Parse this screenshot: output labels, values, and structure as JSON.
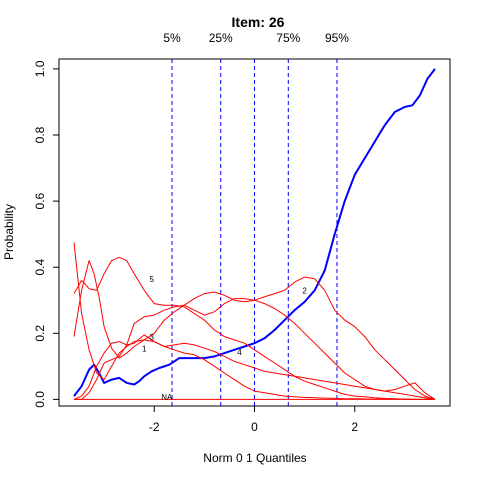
{
  "chart_data": {
    "type": "line",
    "title": "Item:  26",
    "xlabel": "Norm 0 1 Quantiles",
    "ylabel": "Probability",
    "xlim": [
      -3.9,
      3.9
    ],
    "ylim": [
      -0.02,
      1.03
    ],
    "x_ticks": [
      -2,
      0,
      2
    ],
    "y_ticks": [
      0.0,
      0.2,
      0.4,
      0.6,
      0.8,
      1.0
    ],
    "x_tick_labels": [
      "-2",
      "0",
      "2"
    ],
    "y_tick_labels": [
      "0.0",
      "0.2",
      "0.4",
      "0.6",
      "0.8",
      "1.0"
    ],
    "grid": false,
    "quantile_lines": [
      {
        "label": "5%",
        "x": -1.645
      },
      {
        "label": "25%",
        "x": -0.674
      },
      {
        "label": "",
        "x": 0
      },
      {
        "label": "75%",
        "x": 0.674
      },
      {
        "label": "95%",
        "x": 1.645
      }
    ],
    "series": [
      {
        "name": "",
        "color": "#0000ff",
        "width": 2,
        "x": [
          -3.6,
          -3.45,
          -3.3,
          -3.2,
          -3.1,
          -3.0,
          -2.85,
          -2.7,
          -2.55,
          -2.4,
          -2.3,
          -2.2,
          -2.05,
          -1.9,
          -1.7,
          -1.5,
          -1.35,
          -1.2,
          -1.0,
          -0.8,
          -0.6,
          -0.4,
          -0.2,
          0.0,
          0.2,
          0.4,
          0.6,
          0.8,
          1.0,
          1.2,
          1.4,
          1.6,
          1.8,
          2.0,
          2.2,
          2.4,
          2.6,
          2.8,
          3.0,
          3.15,
          3.3,
          3.45,
          3.6
        ],
        "y": [
          0.01,
          0.04,
          0.09,
          0.105,
          0.08,
          0.05,
          0.06,
          0.065,
          0.05,
          0.045,
          0.055,
          0.07,
          0.085,
          0.095,
          0.105,
          0.125,
          0.125,
          0.125,
          0.125,
          0.13,
          0.14,
          0.15,
          0.16,
          0.17,
          0.185,
          0.21,
          0.24,
          0.27,
          0.295,
          0.33,
          0.39,
          0.5,
          0.6,
          0.68,
          0.73,
          0.78,
          0.83,
          0.87,
          0.885,
          0.89,
          0.92,
          0.97,
          1.0
        ]
      },
      {
        "name": "",
        "color": "#ff0000",
        "width": 1,
        "x": [
          -3.6,
          -3.45,
          -3.3,
          -3.15,
          -3.0,
          -2.85,
          -2.7,
          -2.55,
          -2.4,
          -2.2,
          -2.0,
          -1.8,
          -1.6,
          -1.4,
          -1.2,
          -1.0,
          -0.8,
          -0.6,
          -0.4,
          -0.2,
          0.0,
          0.2,
          0.4,
          0.6,
          0.8,
          1.0,
          1.2,
          1.4,
          1.6,
          1.8,
          2.0,
          2.4,
          2.8,
          3.2,
          3.6
        ],
        "y": [
          0.475,
          0.26,
          0.15,
          0.08,
          0.06,
          0.1,
          0.14,
          0.16,
          0.175,
          0.18,
          0.175,
          0.16,
          0.15,
          0.14,
          0.135,
          0.12,
          0.1,
          0.08,
          0.06,
          0.04,
          0.025,
          0.02,
          0.015,
          0.01,
          0.008,
          0.006,
          0.005,
          0.004,
          0.003,
          0.002,
          0.002,
          0.001,
          0.001,
          0.0,
          0.0
        ]
      },
      {
        "name": "",
        "color": "#ff0000",
        "width": 1,
        "x": [
          -3.6,
          -3.45,
          -3.3,
          -3.2,
          -3.1,
          -3.0,
          -2.85,
          -2.7,
          -2.55,
          -2.4,
          -2.2,
          -2.0,
          -1.8,
          -1.6,
          -1.4,
          -1.2,
          -1.0,
          -0.8,
          -0.6,
          -0.4,
          -0.2,
          0.0,
          0.2,
          0.4,
          0.6,
          0.8,
          1.0,
          1.2,
          1.4,
          1.6,
          1.8,
          2.0,
          2.2,
          2.4,
          2.6,
          2.8,
          3.0,
          3.2,
          3.4,
          3.6
        ],
        "y": [
          0.19,
          0.33,
          0.42,
          0.38,
          0.31,
          0.22,
          0.155,
          0.125,
          0.14,
          0.16,
          0.18,
          0.2,
          0.24,
          0.265,
          0.285,
          0.305,
          0.32,
          0.325,
          0.315,
          0.3,
          0.295,
          0.3,
          0.31,
          0.32,
          0.33,
          0.355,
          0.37,
          0.365,
          0.33,
          0.27,
          0.24,
          0.22,
          0.19,
          0.15,
          0.12,
          0.09,
          0.06,
          0.03,
          0.01,
          0.0
        ]
      },
      {
        "name": "",
        "color": "#ff0000",
        "width": 1,
        "x": [
          -3.6,
          -3.45,
          -3.3,
          -3.15,
          -3.0,
          -2.85,
          -2.7,
          -2.55,
          -2.4,
          -2.2,
          -2.0,
          -1.8,
          -1.6,
          -1.4,
          -1.2,
          -1.0,
          -0.8,
          -0.6,
          -0.4,
          -0.2,
          0.0,
          0.2,
          0.4,
          0.6,
          0.8,
          1.0,
          1.2,
          1.4,
          1.6,
          1.8,
          2.0,
          2.2,
          2.4,
          2.6,
          2.8,
          3.0,
          3.2,
          3.4,
          3.6
        ],
        "y": [
          0.0,
          0.01,
          0.04,
          0.1,
          0.14,
          0.17,
          0.175,
          0.165,
          0.17,
          0.195,
          0.175,
          0.16,
          0.165,
          0.17,
          0.165,
          0.155,
          0.145,
          0.13,
          0.115,
          0.105,
          0.095,
          0.085,
          0.08,
          0.075,
          0.07,
          0.065,
          0.06,
          0.055,
          0.05,
          0.045,
          0.04,
          0.035,
          0.03,
          0.025,
          0.02,
          0.015,
          0.01,
          0.005,
          0.0
        ]
      },
      {
        "name": "",
        "color": "#ff0000",
        "width": 1,
        "x": [
          -3.6,
          -3.45,
          -3.3,
          -3.15,
          -3.0,
          -2.85,
          -2.7,
          -2.55,
          -2.4,
          -2.2,
          -2.0,
          -1.8,
          -1.6,
          -1.4,
          -1.2,
          -1.0,
          -0.8,
          -0.6,
          -0.4,
          -0.2,
          0.0,
          0.2,
          0.4,
          0.6,
          0.8,
          1.0,
          1.2,
          1.4,
          1.6,
          1.8,
          2.0,
          2.2,
          2.4,
          2.6,
          2.8,
          3.0,
          3.2,
          3.4,
          3.6
        ],
        "y": [
          0.0,
          0.0,
          0.02,
          0.06,
          0.11,
          0.12,
          0.13,
          0.165,
          0.23,
          0.25,
          0.255,
          0.27,
          0.28,
          0.285,
          0.27,
          0.255,
          0.265,
          0.29,
          0.305,
          0.305,
          0.3,
          0.29,
          0.275,
          0.255,
          0.23,
          0.2,
          0.17,
          0.14,
          0.11,
          0.08,
          0.06,
          0.04,
          0.03,
          0.025,
          0.03,
          0.04,
          0.05,
          0.02,
          0.0
        ]
      },
      {
        "name": "",
        "color": "#ff0000",
        "width": 1,
        "x": [
          -3.6,
          -3.45,
          -3.3,
          -3.15,
          -3.0,
          -2.85,
          -2.7,
          -2.55,
          -2.4,
          -2.2,
          -2.0,
          -1.8,
          -1.6,
          -1.4,
          -1.2,
          -1.0,
          -0.8,
          -0.6,
          -0.4,
          -0.2,
          0.0,
          0.2,
          0.4,
          0.6,
          0.8,
          1.0,
          1.2,
          1.4,
          1.6,
          1.8,
          2.0,
          2.2,
          2.4,
          2.6,
          2.8,
          3.0,
          3.2,
          3.4,
          3.6
        ],
        "y": [
          0.32,
          0.36,
          0.335,
          0.33,
          0.38,
          0.42,
          0.43,
          0.42,
          0.38,
          0.33,
          0.29,
          0.285,
          0.285,
          0.28,
          0.26,
          0.24,
          0.21,
          0.19,
          0.18,
          0.17,
          0.15,
          0.13,
          0.11,
          0.09,
          0.07,
          0.055,
          0.045,
          0.035,
          0.025,
          0.015,
          0.01,
          0.008,
          0.005,
          0.003,
          0.002,
          0.001,
          0.0,
          0.0,
          0.0
        ]
      },
      {
        "name": "",
        "color": "#ff0000",
        "width": 1,
        "x": [
          -3.6,
          -3.0,
          -2.0,
          -1.0,
          0.0,
          1.0,
          2.0,
          3.0,
          3.6
        ],
        "y": [
          0.0,
          0.0,
          0.0,
          0.0,
          0.0,
          0.0,
          0.0,
          0.0,
          0.0
        ]
      }
    ],
    "annotations": [
      {
        "text": "5",
        "x": -2.05,
        "y": 0.355
      },
      {
        "text": "3",
        "x": -2.05,
        "y": 0.18
      },
      {
        "text": "1",
        "x": -2.2,
        "y": 0.145
      },
      {
        "text": "4",
        "x": -0.3,
        "y": 0.135
      },
      {
        "text": "2",
        "x": 1.0,
        "y": 0.32
      },
      {
        "text": "NA",
        "x": -1.75,
        "y": -0.002
      }
    ]
  }
}
